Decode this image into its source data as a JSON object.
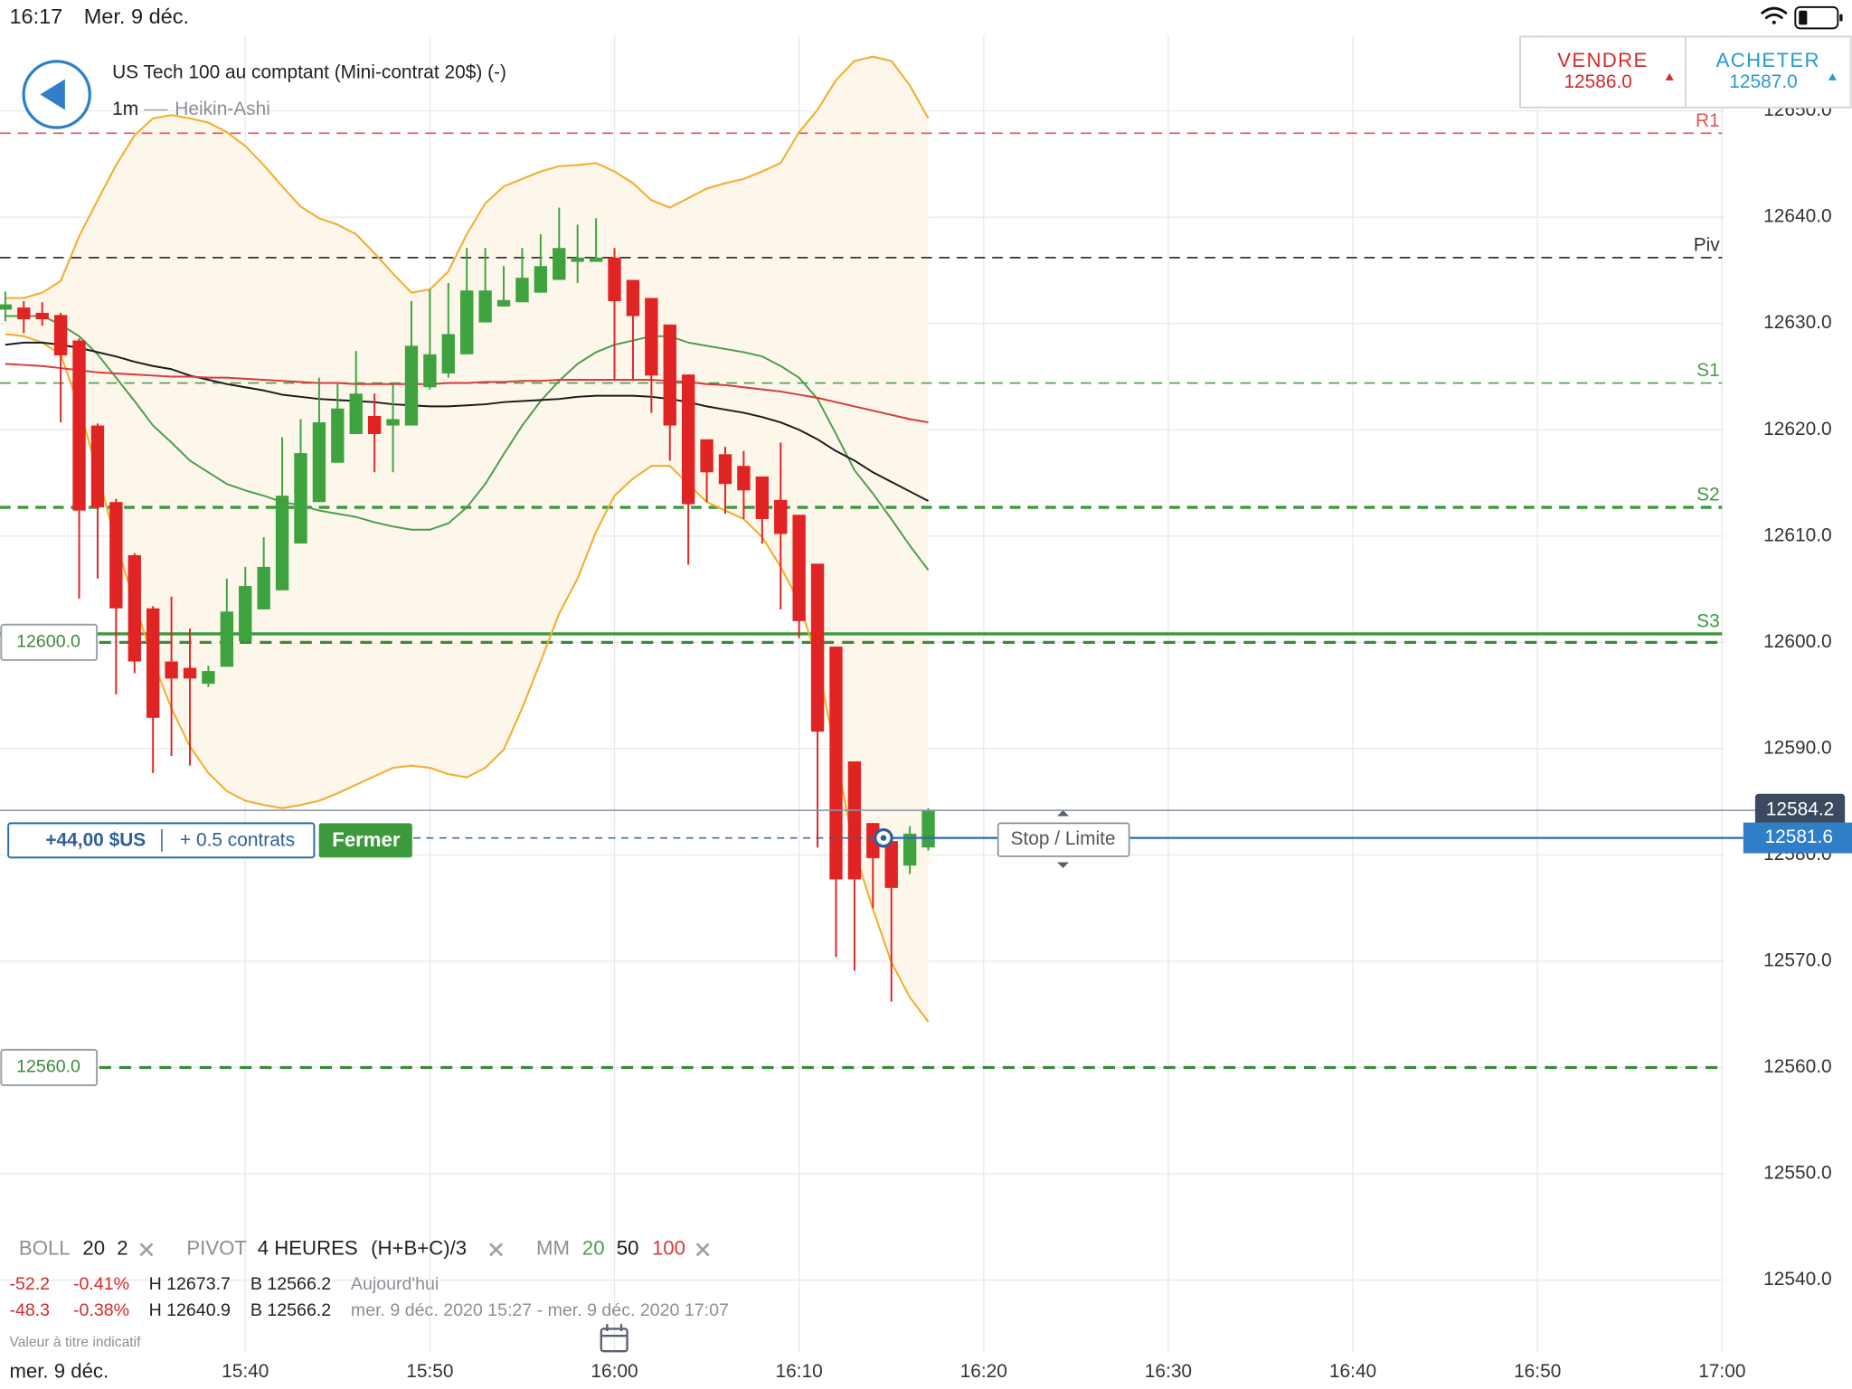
{
  "status_bar": {
    "time": "16:17",
    "date": "Mer. 9 déc."
  },
  "header": {
    "title": "US Tech 100 au comptant (Mini-contrat 20$) (-)",
    "interval": "1m",
    "chart_style": "Heikin-Ashi"
  },
  "quotes": {
    "sell_label": "VENDRE",
    "sell_price": "12586.0",
    "buy_label": "ACHETER",
    "buy_price": "12587.0"
  },
  "position": {
    "pnl": "+44,00 $US",
    "size": "+ 0.5 contrats",
    "close_button": "Fermer",
    "stop_limit": "Stop / Limite"
  },
  "indicators": {
    "boll": {
      "name": "BOLL"
    },
    "pivot": {
      "name": "PIVOT",
      "period": "4 HEURES",
      "formula": "(H+B+C)/3"
    },
    "mm": {
      "name": "MM"
    }
  },
  "stats": [
    {
      "change": "-52.2",
      "change_pct": "-0.41%",
      "high": "H 12673.7",
      "low": "B 12566.2",
      "range": "Aujourd'hui"
    },
    {
      "change": "-48.3",
      "change_pct": "-0.38%",
      "high": "H 12640.9",
      "low": "B 12566.2",
      "range": "mer. 9 déc. 2020 15:27 - mer. 9 déc. 2020 17:07"
    }
  ],
  "footer": {
    "disclaimer": "Valeur à titre indicatif",
    "date": "mer. 9 déc."
  },
  "chart_data": {
    "type": "candlestick",
    "up_color": "#3ea33e",
    "down_color": "#e02424",
    "grid": true,
    "x": [
      "15:27",
      "15:28",
      "15:29",
      "15:30",
      "15:31",
      "15:32",
      "15:33",
      "15:34",
      "15:35",
      "15:36",
      "15:37",
      "15:38",
      "15:39",
      "15:40",
      "15:41",
      "15:42",
      "15:43",
      "15:44",
      "15:45",
      "15:46",
      "15:47",
      "15:48",
      "15:49",
      "15:50",
      "15:51",
      "15:52",
      "15:53",
      "15:54",
      "15:55",
      "15:56",
      "15:57",
      "15:58",
      "15:59",
      "16:00",
      "16:01",
      "16:02",
      "16:03",
      "16:04",
      "16:05",
      "16:06",
      "16:07",
      "16:08",
      "16:09",
      "16:10",
      "16:11",
      "16:12",
      "16:13",
      "16:14",
      "16:15",
      "16:16",
      "16:17"
    ],
    "open": [
      12631.3,
      12631.5,
      12631,
      12630.8,
      12628.4,
      12620.4,
      12613.2,
      12608.2,
      12603.2,
      12598.2,
      12597.6,
      12596.1,
      12597.7,
      12600.1,
      12603.1,
      12604.9,
      12609.3,
      12613.2,
      12616.9,
      12619.6,
      12621.3,
      12620.4,
      12620.4,
      12624,
      12625.3,
      12627.1,
      12630.1,
      12631.6,
      12632,
      12632.9,
      12634.1,
      12635.8,
      12635.8,
      12636.2,
      12634.1,
      12632.4,
      12629.9,
      12625.2,
      12619.1,
      12617.7,
      12616.6,
      12615.6,
      12613.4,
      12612,
      12607.4,
      12599.6,
      12588.8,
      12583,
      12581.3,
      12579,
      12580.7
    ],
    "high": [
      12633,
      12632.1,
      12632,
      12631,
      12628.6,
      12620.6,
      12613.5,
      12608.4,
      12603.4,
      12604.3,
      12601.3,
      12597.8,
      12606,
      12607.1,
      12609.9,
      12619.3,
      12621,
      12624.9,
      12624.3,
      12627.4,
      12623.4,
      12624.3,
      12632.1,
      12633.2,
      12633.8,
      12637.1,
      12637.1,
      12635.4,
      12637.1,
      12638.4,
      12640.9,
      12639.3,
      12639.9,
      12637.1,
      12634.1,
      12632.4,
      12629.9,
      12625.2,
      12619.1,
      12618.4,
      12618,
      12615.6,
      12618.8,
      12612,
      12607.4,
      12599.6,
      12588.8,
      12583,
      12581.3,
      12582.7,
      12584.4
    ],
    "low": [
      12630.2,
      12629.1,
      12629.8,
      12620.7,
      12604.1,
      12606,
      12595.1,
      12597.1,
      12587.7,
      12589.3,
      12588.4,
      12595.8,
      12597.7,
      12599.9,
      12603.1,
      12604.9,
      12609.3,
      12613.2,
      12616.9,
      12619.6,
      12616,
      12616,
      12620.4,
      12623.8,
      12624.9,
      12627.1,
      12630.1,
      12631.6,
      12632,
      12632.9,
      12634.1,
      12633.8,
      12635.8,
      12624.7,
      12624.7,
      12621.6,
      12617.1,
      12607.3,
      12613.2,
      12612.1,
      12611.6,
      12609.3,
      12603.1,
      12600.4,
      12580.7,
      12570.4,
      12569.1,
      12575,
      12566.2,
      12578.2,
      12580.4
    ],
    "close": [
      12631.8,
      12630.4,
      12630.4,
      12627,
      12612.4,
      12612.7,
      12603.2,
      12598.2,
      12592.9,
      12596.6,
      12596.6,
      12597.3,
      12602.9,
      12605.3,
      12607.1,
      12613.8,
      12617.8,
      12620.7,
      12622,
      12623.4,
      12619.6,
      12621,
      12627.9,
      12627.1,
      12629,
      12633.1,
      12633.1,
      12632.2,
      12634.3,
      12635.4,
      12637.1,
      12636.2,
      12636.2,
      12632.1,
      12630.7,
      12625.1,
      12620.4,
      12613,
      12616,
      12614.9,
      12614.3,
      12611.6,
      12610.2,
      12602,
      12591.6,
      12577.7,
      12577.7,
      12579.7,
      12576.9,
      12582,
      12584.2
    ],
    "bollinger": {
      "period": 20,
      "deviations": 2,
      "color": "#f0b030",
      "fill": "#fdf6ea",
      "upper": [
        12632.4,
        12632.4,
        12632.9,
        12634,
        12638.2,
        12641.6,
        12644.9,
        12647.7,
        12649.3,
        12649.6,
        12649.3,
        12648.9,
        12648,
        12646.7,
        12644.9,
        12642.9,
        12641,
        12639.9,
        12639.3,
        12638.4,
        12636.6,
        12634.7,
        12632.9,
        12633.2,
        12634.9,
        12638.4,
        12641.3,
        12642.9,
        12643.6,
        12644.3,
        12644.8,
        12644.9,
        12645.1,
        12644.3,
        12643.2,
        12641.6,
        12640.9,
        12641.8,
        12642.7,
        12643.2,
        12643.6,
        12644.3,
        12645.1,
        12648,
        12650.1,
        12652.9,
        12654.7,
        12655.1,
        12654.7,
        12652.4,
        12649.3
      ],
      "lower": [
        12629,
        12628.8,
        12628.2,
        12627.1,
        12622.1,
        12616,
        12609.3,
        12603.8,
        12598.2,
        12593.8,
        12590.2,
        12587.7,
        12586,
        12585.1,
        12584.7,
        12584.4,
        12584.7,
        12585.1,
        12585.8,
        12586.6,
        12587.4,
        12588.2,
        12588.4,
        12588.2,
        12587.6,
        12587.3,
        12588.2,
        12589.9,
        12593.8,
        12598.2,
        12602.7,
        12606,
        12610.4,
        12613.8,
        12615.4,
        12616.6,
        12616.6,
        12614.9,
        12613.2,
        12612.4,
        12611.6,
        12609.9,
        12607.1,
        12603.8,
        12598.2,
        12589.3,
        12580.4,
        12574.9,
        12569.9,
        12566.6,
        12564.3
      ]
    },
    "moving_averages": [
      {
        "period": 20,
        "color": "#4a9e4a",
        "values": [
          12630.7,
          12630.7,
          12630.7,
          12629.9,
          12628.8,
          12627.1,
          12624.9,
          12622.7,
          12620.4,
          12618.8,
          12617.1,
          12616,
          12614.9,
          12614.3,
          12613.8,
          12613.2,
          12612.9,
          12612.4,
          12612.1,
          12611.8,
          12611.3,
          12610.9,
          12610.6,
          12610.6,
          12611.2,
          12612.7,
          12614.9,
          12617.7,
          12620.4,
          12622.7,
          12624.6,
          12626.2,
          12627.3,
          12628,
          12628.4,
          12628.8,
          12628.8,
          12628.2,
          12627.9,
          12627.6,
          12627.3,
          12626.9,
          12626,
          12624.9,
          12622.9,
          12619.6,
          12616.2,
          12614,
          12611.6,
          12609.1,
          12606.8
        ]
      },
      {
        "period": 50,
        "color": "#1a1a1a",
        "values": [
          12628,
          12628.2,
          12628.2,
          12628,
          12627.7,
          12627.3,
          12626.9,
          12626.4,
          12626,
          12625.7,
          12625.1,
          12624.7,
          12624.3,
          12624,
          12623.7,
          12623.3,
          12623.1,
          12622.9,
          12622.8,
          12622.7,
          12622.6,
          12622.4,
          12622.3,
          12622.2,
          12622.2,
          12622.3,
          12622.4,
          12622.6,
          12622.7,
          12622.8,
          12622.9,
          12623.1,
          12623.2,
          12623.2,
          12623.2,
          12623.1,
          12622.9,
          12622.6,
          12622.2,
          12621.9,
          12621.6,
          12621.2,
          12620.7,
          12620,
          12619.1,
          12618,
          12617.1,
          12616,
          12615.1,
          12614.2,
          12613.3
        ]
      },
      {
        "period": 100,
        "color": "#d63a3a",
        "values": [
          12626.2,
          12626.1,
          12626,
          12625.8,
          12625.6,
          12625.4,
          12625.3,
          12625.2,
          12625.1,
          12625,
          12625,
          12624.9,
          12624.9,
          12624.8,
          12624.7,
          12624.6,
          12624.5,
          12624.4,
          12624.4,
          12624.3,
          12624.3,
          12624.3,
          12624.3,
          12624.3,
          12624.4,
          12624.4,
          12624.5,
          12624.5,
          12624.6,
          12624.6,
          12624.7,
          12624.7,
          12624.7,
          12624.7,
          12624.7,
          12624.7,
          12624.6,
          12624.5,
          12624.3,
          12624.2,
          12624,
          12623.8,
          12623.6,
          12623.3,
          12623,
          12622.6,
          12622.2,
          12621.8,
          12621.4,
          12621,
          12620.7
        ]
      }
    ],
    "pivots": [
      {
        "name": "R1",
        "value": 12647.9,
        "color": "#e05555",
        "style": "dashed",
        "width": 1.3
      },
      {
        "name": "Piv",
        "value": 12636.2,
        "color": "#333333",
        "style": "dashed",
        "width": 1.3
      },
      {
        "name": "S1",
        "value": 12624.4,
        "color": "#4a9e4a",
        "style": "dashed",
        "width": 1.3
      },
      {
        "name": "S2",
        "value": 12612.7,
        "color": "#3a9a3a",
        "style": "dashed",
        "width": 2.5
      },
      {
        "name": "S3",
        "value": 12600.8,
        "color": "#3a9a3a",
        "style": "solid",
        "width": 2.5
      }
    ],
    "alerts": [
      {
        "value": 12600,
        "label": "12600.0"
      },
      {
        "value": 12560,
        "label": "12560.0"
      }
    ],
    "alert_color": "#3a8a3a",
    "last_price": 12584.2,
    "entry_price": 12581.6,
    "xlim": [
      "15:27",
      "17:00"
    ],
    "xticks": [
      "15:40",
      "15:50",
      "16:00",
      "16:10",
      "16:20",
      "16:30",
      "16:40",
      "16:50",
      "17:00"
    ],
    "ylim": [
      12533.2,
      12657.1
    ],
    "yticks": [
      {
        "value": 12540,
        "label": "12540.0"
      },
      {
        "value": 12550,
        "label": "12550.0"
      },
      {
        "value": 12560,
        "label": "12560.0"
      },
      {
        "value": 12570,
        "label": "12570.0"
      },
      {
        "value": 12580,
        "label": "12580.0"
      },
      {
        "value": 12590,
        "label": "12590.0"
      },
      {
        "value": 12600,
        "label": "12600.0"
      },
      {
        "value": 12610,
        "label": "12610.0"
      },
      {
        "value": 12620,
        "label": "12620.0"
      },
      {
        "value": 12630,
        "label": "12630.0"
      },
      {
        "value": 12640,
        "label": "12640.0"
      },
      {
        "value": 12650,
        "label": "12650.0"
      }
    ]
  }
}
